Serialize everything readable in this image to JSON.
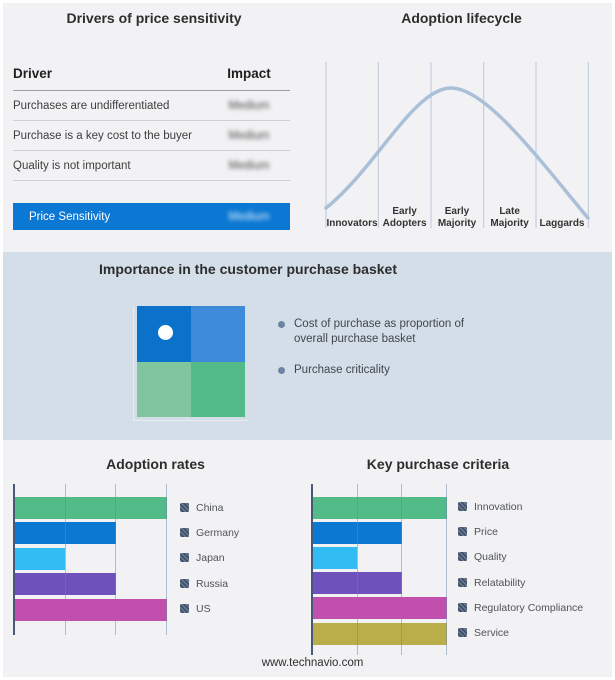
{
  "drivers_table": {
    "title": "Drivers of price sensitivity",
    "columns": {
      "driver": "Driver",
      "impact": "Impact"
    },
    "rows": [
      {
        "driver": "Purchases are undifferentiated",
        "impact": "Medium"
      },
      {
        "driver": "Purchase is a key cost to the buyer",
        "impact": "Medium"
      },
      {
        "driver": "Quality is not important",
        "impact": "Medium"
      }
    ],
    "highlight_row": {
      "driver": "Price Sensitivity",
      "impact": "Medium"
    }
  },
  "adoption_lifecycle": {
    "title": "Adoption lifecycle",
    "stages": [
      "Innovators",
      "Early Adopters",
      "Early Majority",
      "Late Majority",
      "Laggards"
    ],
    "curve_color": "#aabfd8",
    "divider_color": "#bac8db"
  },
  "purchase_basket": {
    "title": "Importance in the customer purchase basket",
    "legend": [
      "Cost of purchase as proportion of overall purchase basket",
      "Purchase criticality"
    ],
    "quadrant_colors": [
      "#0b72cb",
      "#3e8bd9",
      "#7fc69e",
      "#52bb87"
    ],
    "dot_color": "#ffffff"
  },
  "chart_data": [
    {
      "type": "bar",
      "orientation": "horizontal",
      "title": "Adoption rates",
      "categories": [
        "China",
        "Germany",
        "Japan",
        "Russia",
        "US"
      ],
      "values": [
        100,
        67,
        33,
        67,
        100
      ],
      "colors": [
        "#52bb87",
        "#0b78d1",
        "#31bcf4",
        "#6f51bb",
        "#c14fae"
      ],
      "xlim": [
        0,
        100
      ],
      "grid": true,
      "legend_position": "right"
    },
    {
      "type": "bar",
      "orientation": "horizontal",
      "title": "Key purchase criteria",
      "categories": [
        "Innovation",
        "Price",
        "Quality",
        "Relatability",
        "Regulatory Compliance",
        "Service"
      ],
      "values": [
        100,
        67,
        33,
        67,
        100,
        100
      ],
      "colors": [
        "#52bb87",
        "#0b78d1",
        "#31bcf4",
        "#6f51bb",
        "#c14fae",
        "#b9ae49"
      ],
      "xlim": [
        0,
        100
      ],
      "grid": true,
      "legend_position": "right"
    }
  ],
  "footer": {
    "website": "www.technavio.com"
  },
  "colors": {
    "highlight_blue": "#0b78d3",
    "band_background": "#d4dee9",
    "page_background": "#f2f2f4",
    "axis": "#46597a"
  }
}
